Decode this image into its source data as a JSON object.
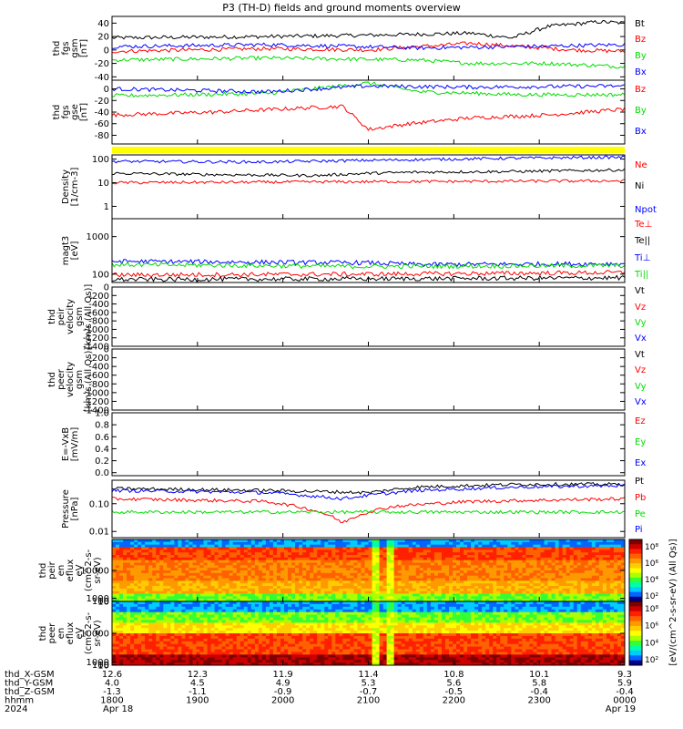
{
  "title": "P3 (TH-D) fields and ground moments overview",
  "colors": {
    "black": "#000000",
    "red": "#ff0000",
    "green": "#00dd00",
    "blue": "#0000ff",
    "yellow": "#ffff00"
  },
  "chart_data": [
    {
      "id": "p1",
      "type": "line",
      "ylabel": [
        "thd",
        "fgs",
        "gsm",
        "[nT]"
      ],
      "ylim": [
        -45,
        50
      ],
      "yticks": [
        40,
        20,
        0,
        -20,
        -40
      ],
      "legend": [
        {
          "label": "Bt",
          "color": "#000000"
        },
        {
          "label": "Bz",
          "color": "#ff0000"
        },
        {
          "label": "By",
          "color": "#00dd00"
        },
        {
          "label": "Bx",
          "color": "#0000ff"
        }
      ],
      "series": [
        {
          "name": "Bt",
          "color": "#000000",
          "values": [
            [
              0,
              18
            ],
            [
              0.3,
              20
            ],
            [
              0.5,
              22
            ],
            [
              0.7,
              25
            ],
            [
              0.78,
              18
            ],
            [
              0.85,
              35
            ],
            [
              0.95,
              42
            ],
            [
              1.0,
              40
            ]
          ]
        },
        {
          "name": "Bz",
          "color": "#ff0000",
          "values": [
            [
              0,
              -2
            ],
            [
              0.3,
              2
            ],
            [
              0.5,
              0
            ],
            [
              0.7,
              10
            ],
            [
              0.8,
              5
            ],
            [
              0.9,
              0
            ],
            [
              1.0,
              -2
            ]
          ]
        },
        {
          "name": "By",
          "color": "#00dd00",
          "values": [
            [
              0,
              -15
            ],
            [
              0.3,
              -12
            ],
            [
              0.6,
              -15
            ],
            [
              0.7,
              -20
            ],
            [
              0.85,
              -20
            ],
            [
              1.0,
              -25
            ]
          ]
        },
        {
          "name": "Bx",
          "color": "#0000ff",
          "values": [
            [
              0,
              5
            ],
            [
              0.3,
              8
            ],
            [
              0.6,
              3
            ],
            [
              0.8,
              5
            ],
            [
              1.0,
              8
            ]
          ]
        }
      ]
    },
    {
      "id": "p2",
      "type": "line",
      "ylabel": [
        "thd",
        "fgs",
        "gse",
        "[nT]"
      ],
      "ylim": [
        -95,
        15
      ],
      "yticks": [
        0,
        -20,
        -40,
        -60,
        -80
      ],
      "legend": [
        {
          "label": "Bz",
          "color": "#ff0000"
        },
        {
          "label": "By",
          "color": "#00dd00"
        },
        {
          "label": "Bx",
          "color": "#0000ff"
        }
      ],
      "series": [
        {
          "name": "Bz",
          "color": "#ff0000",
          "values": [
            [
              0,
              -45
            ],
            [
              0.2,
              -40
            ],
            [
              0.45,
              -30
            ],
            [
              0.5,
              -70
            ],
            [
              0.58,
              -60
            ],
            [
              0.7,
              -50
            ],
            [
              0.85,
              -45
            ],
            [
              1.0,
              -35
            ]
          ]
        },
        {
          "name": "By",
          "color": "#00dd00",
          "values": [
            [
              0,
              -12
            ],
            [
              0.3,
              -8
            ],
            [
              0.5,
              10
            ],
            [
              0.6,
              -5
            ],
            [
              0.8,
              -10
            ],
            [
              1.0,
              -10
            ]
          ]
        },
        {
          "name": "Bx",
          "color": "#0000ff",
          "values": [
            [
              0,
              0
            ],
            [
              0.3,
              -5
            ],
            [
              0.5,
              5
            ],
            [
              0.7,
              3
            ],
            [
              1.0,
              5
            ]
          ]
        }
      ]
    },
    {
      "id": "p3",
      "type": "line",
      "log": true,
      "ylabel": [
        "Density",
        "[1/cm-3]"
      ],
      "ylim": [
        0.3,
        150
      ],
      "yticks": [
        100,
        10,
        1
      ],
      "yticklabels": [
        "100",
        "10",
        "1"
      ],
      "legend": [
        {
          "label": "Ne",
          "color": "#ff0000"
        },
        {
          "label": "Ni",
          "color": "#000000"
        },
        {
          "label": "Npot",
          "color": "#0000ff"
        }
      ],
      "series": [
        {
          "name": "Ni",
          "color": "#000000",
          "values": [
            [
              0,
              25
            ],
            [
              0.2,
              22
            ],
            [
              0.4,
              20
            ],
            [
              0.5,
              25
            ],
            [
              0.6,
              28
            ],
            [
              0.8,
              30
            ],
            [
              1.0,
              35
            ]
          ]
        },
        {
          "name": "Npot",
          "color": "#0000ff",
          "values": [
            [
              0,
              80
            ],
            [
              0.3,
              75
            ],
            [
              0.6,
              95
            ],
            [
              0.8,
              110
            ],
            [
              1.0,
              120
            ]
          ]
        },
        {
          "name": "Ne",
          "color": "#ff0000",
          "values": [
            [
              0,
              10
            ],
            [
              0.5,
              11
            ],
            [
              1.0,
              12
            ]
          ]
        }
      ]
    },
    {
      "id": "p4",
      "type": "line",
      "log": true,
      "ylabel": [
        "magt3",
        "[eV]"
      ],
      "ylim": [
        60,
        3000
      ],
      "yticks": [
        1000,
        100
      ],
      "yticklabels": [
        "1000",
        "100"
      ],
      "legend": [
        {
          "label": "Te⊥",
          "color": "#ff0000"
        },
        {
          "label": "Te||",
          "color": "#000000"
        },
        {
          "label": "Ti⊥",
          "color": "#0000ff"
        },
        {
          "label": "Ti||",
          "color": "#00dd00"
        }
      ],
      "series": [
        {
          "name": "Ti⊥",
          "color": "#0000ff",
          "values": [
            [
              0,
              220
            ],
            [
              0.5,
              200
            ],
            [
              0.6,
              180
            ],
            [
              1.0,
              190
            ]
          ]
        },
        {
          "name": "Ti||",
          "color": "#00dd00",
          "values": [
            [
              0,
              180
            ],
            [
              0.5,
              160
            ],
            [
              1.0,
              170
            ]
          ]
        },
        {
          "name": "Te⊥",
          "color": "#ff0000",
          "values": [
            [
              0,
              95
            ],
            [
              0.5,
              100
            ],
            [
              1.0,
              110
            ]
          ]
        },
        {
          "name": "Te||",
          "color": "#000000",
          "values": [
            [
              0,
              72
            ],
            [
              0.5,
              75
            ],
            [
              1.0,
              80
            ]
          ]
        }
      ]
    },
    {
      "id": "p5",
      "type": "line",
      "ylabel": [
        "thd",
        "peir",
        "velocity",
        "gsm",
        "[km/s (All Qs)]"
      ],
      "ylim": [
        -1400,
        0
      ],
      "yticks": [
        0,
        -200,
        -400,
        -600,
        -800,
        -1000,
        -1200,
        -1400
      ],
      "legend": [
        {
          "label": "Vt",
          "color": "#000000"
        },
        {
          "label": "Vz",
          "color": "#ff0000"
        },
        {
          "label": "Vy",
          "color": "#00dd00"
        },
        {
          "label": "Vx",
          "color": "#0000ff"
        }
      ],
      "series": []
    },
    {
      "id": "p6",
      "type": "line",
      "ylabel": [
        "thd",
        "peer",
        "velocity",
        "gsm",
        "[km/s (All Qs)]"
      ],
      "ylim": [
        -1400,
        0
      ],
      "yticks": [
        0,
        -200,
        -400,
        -600,
        -800,
        -1000,
        -1200,
        -1400
      ],
      "legend": [
        {
          "label": "Vt",
          "color": "#000000"
        },
        {
          "label": "Vz",
          "color": "#ff0000"
        },
        {
          "label": "Vy",
          "color": "#00dd00"
        },
        {
          "label": "Vx",
          "color": "#0000ff"
        }
      ],
      "series": []
    },
    {
      "id": "p7",
      "type": "line",
      "ylabel": [
        "E=-VxB",
        "[mV/m]"
      ],
      "ylim": [
        -0.05,
        1.0
      ],
      "yticks": [
        1.0,
        0.8,
        0.6,
        0.4,
        0.2,
        0.0
      ],
      "yticklabels": [
        "1.0",
        "0.8",
        "0.6",
        "0.4",
        "0.2",
        "0.0"
      ],
      "legend": [
        {
          "label": "Ez",
          "color": "#ff0000"
        },
        {
          "label": "Ey",
          "color": "#00dd00"
        },
        {
          "label": "Ex",
          "color": "#0000ff"
        }
      ],
      "series": []
    },
    {
      "id": "p8",
      "type": "line",
      "log": true,
      "ylabel": [
        "Pressure",
        "[nPa]"
      ],
      "ylim": [
        0.006,
        0.7
      ],
      "yticks": [
        0.1,
        0.01
      ],
      "yticklabels": [
        "0.10",
        "0.01"
      ],
      "legend": [
        {
          "label": "Pt",
          "color": "#000000"
        },
        {
          "label": "Pb",
          "color": "#ff0000"
        },
        {
          "label": "Pe",
          "color": "#00dd00"
        },
        {
          "label": "Pi",
          "color": "#0000ff"
        }
      ],
      "series": [
        {
          "name": "Pt",
          "color": "#000000",
          "values": [
            [
              0,
              0.35
            ],
            [
              0.3,
              0.3
            ],
            [
              0.5,
              0.25
            ],
            [
              0.6,
              0.4
            ],
            [
              0.8,
              0.5
            ],
            [
              1.0,
              0.5
            ]
          ]
        },
        {
          "name": "Pi",
          "color": "#0000ff",
          "values": [
            [
              0,
              0.3
            ],
            [
              0.3,
              0.25
            ],
            [
              0.45,
              0.15
            ],
            [
              0.6,
              0.3
            ],
            [
              0.8,
              0.4
            ],
            [
              1.0,
              0.45
            ]
          ]
        },
        {
          "name": "Pb",
          "color": "#ff0000",
          "values": [
            [
              0,
              0.15
            ],
            [
              0.3,
              0.12
            ],
            [
              0.45,
              0.02
            ],
            [
              0.55,
              0.08
            ],
            [
              0.7,
              0.12
            ],
            [
              1.0,
              0.15
            ]
          ]
        },
        {
          "name": "Pe",
          "color": "#00dd00",
          "values": [
            [
              0,
              0.05
            ],
            [
              0.5,
              0.05
            ],
            [
              1.0,
              0.05
            ]
          ]
        }
      ]
    },
    {
      "id": "p9",
      "type": "heatmap",
      "ylabel": [
        "thd",
        "peir",
        "en",
        "eflux",
        "eV",
        "(cm^2-s-",
        "sr-eV)"
      ],
      "ylim": [
        10,
        20000
      ],
      "yticks": [
        10000,
        1000,
        100,
        10
      ],
      "yticklabels": [
        "10000",
        "1000",
        "100",
        "10"
      ]
    },
    {
      "id": "p10",
      "type": "heatmap",
      "ylabel": [
        "thd",
        "peer",
        "en",
        "eflux",
        "eV",
        "(cm^2-s-",
        "sr-eV)"
      ],
      "ylim": [
        5,
        20000
      ],
      "yticks": [
        10000,
        1000,
        100,
        10
      ],
      "yticklabels": [
        "10000",
        "1000",
        "100",
        "10"
      ]
    }
  ],
  "colorbar": {
    "label": "[eV/(cm^2-s-sr-eV) (All Qs)]",
    "ticks1": [
      "10⁸",
      "10⁶",
      "10⁴",
      "10²"
    ],
    "ticks2": [
      "10⁸",
      "10⁶",
      "10⁴",
      "10²"
    ]
  },
  "time_axis": {
    "rows": [
      {
        "label": "thd_X-GSM",
        "values": [
          "12.6",
          "12.3",
          "11.9",
          "11.4",
          "10.8",
          "10.1",
          "9.3"
        ]
      },
      {
        "label": "thd_Y-GSM",
        "values": [
          "4.0",
          "4.5",
          "4.9",
          "5.3",
          "5.6",
          "5.8",
          "5.9"
        ]
      },
      {
        "label": "thd_Z-GSM",
        "values": [
          "-1.3",
          "-1.1",
          "-0.9",
          "-0.7",
          "-0.5",
          "-0.4",
          "-0.4"
        ]
      },
      {
        "label": "hhmm",
        "values": [
          "1800",
          "1900",
          "2000",
          "2100",
          "2200",
          "2300",
          "0000"
        ]
      },
      {
        "label": "2024",
        "values": [
          "Apr 18",
          "",
          "",
          "",
          "",
          "",
          "Apr 19"
        ]
      }
    ]
  }
}
